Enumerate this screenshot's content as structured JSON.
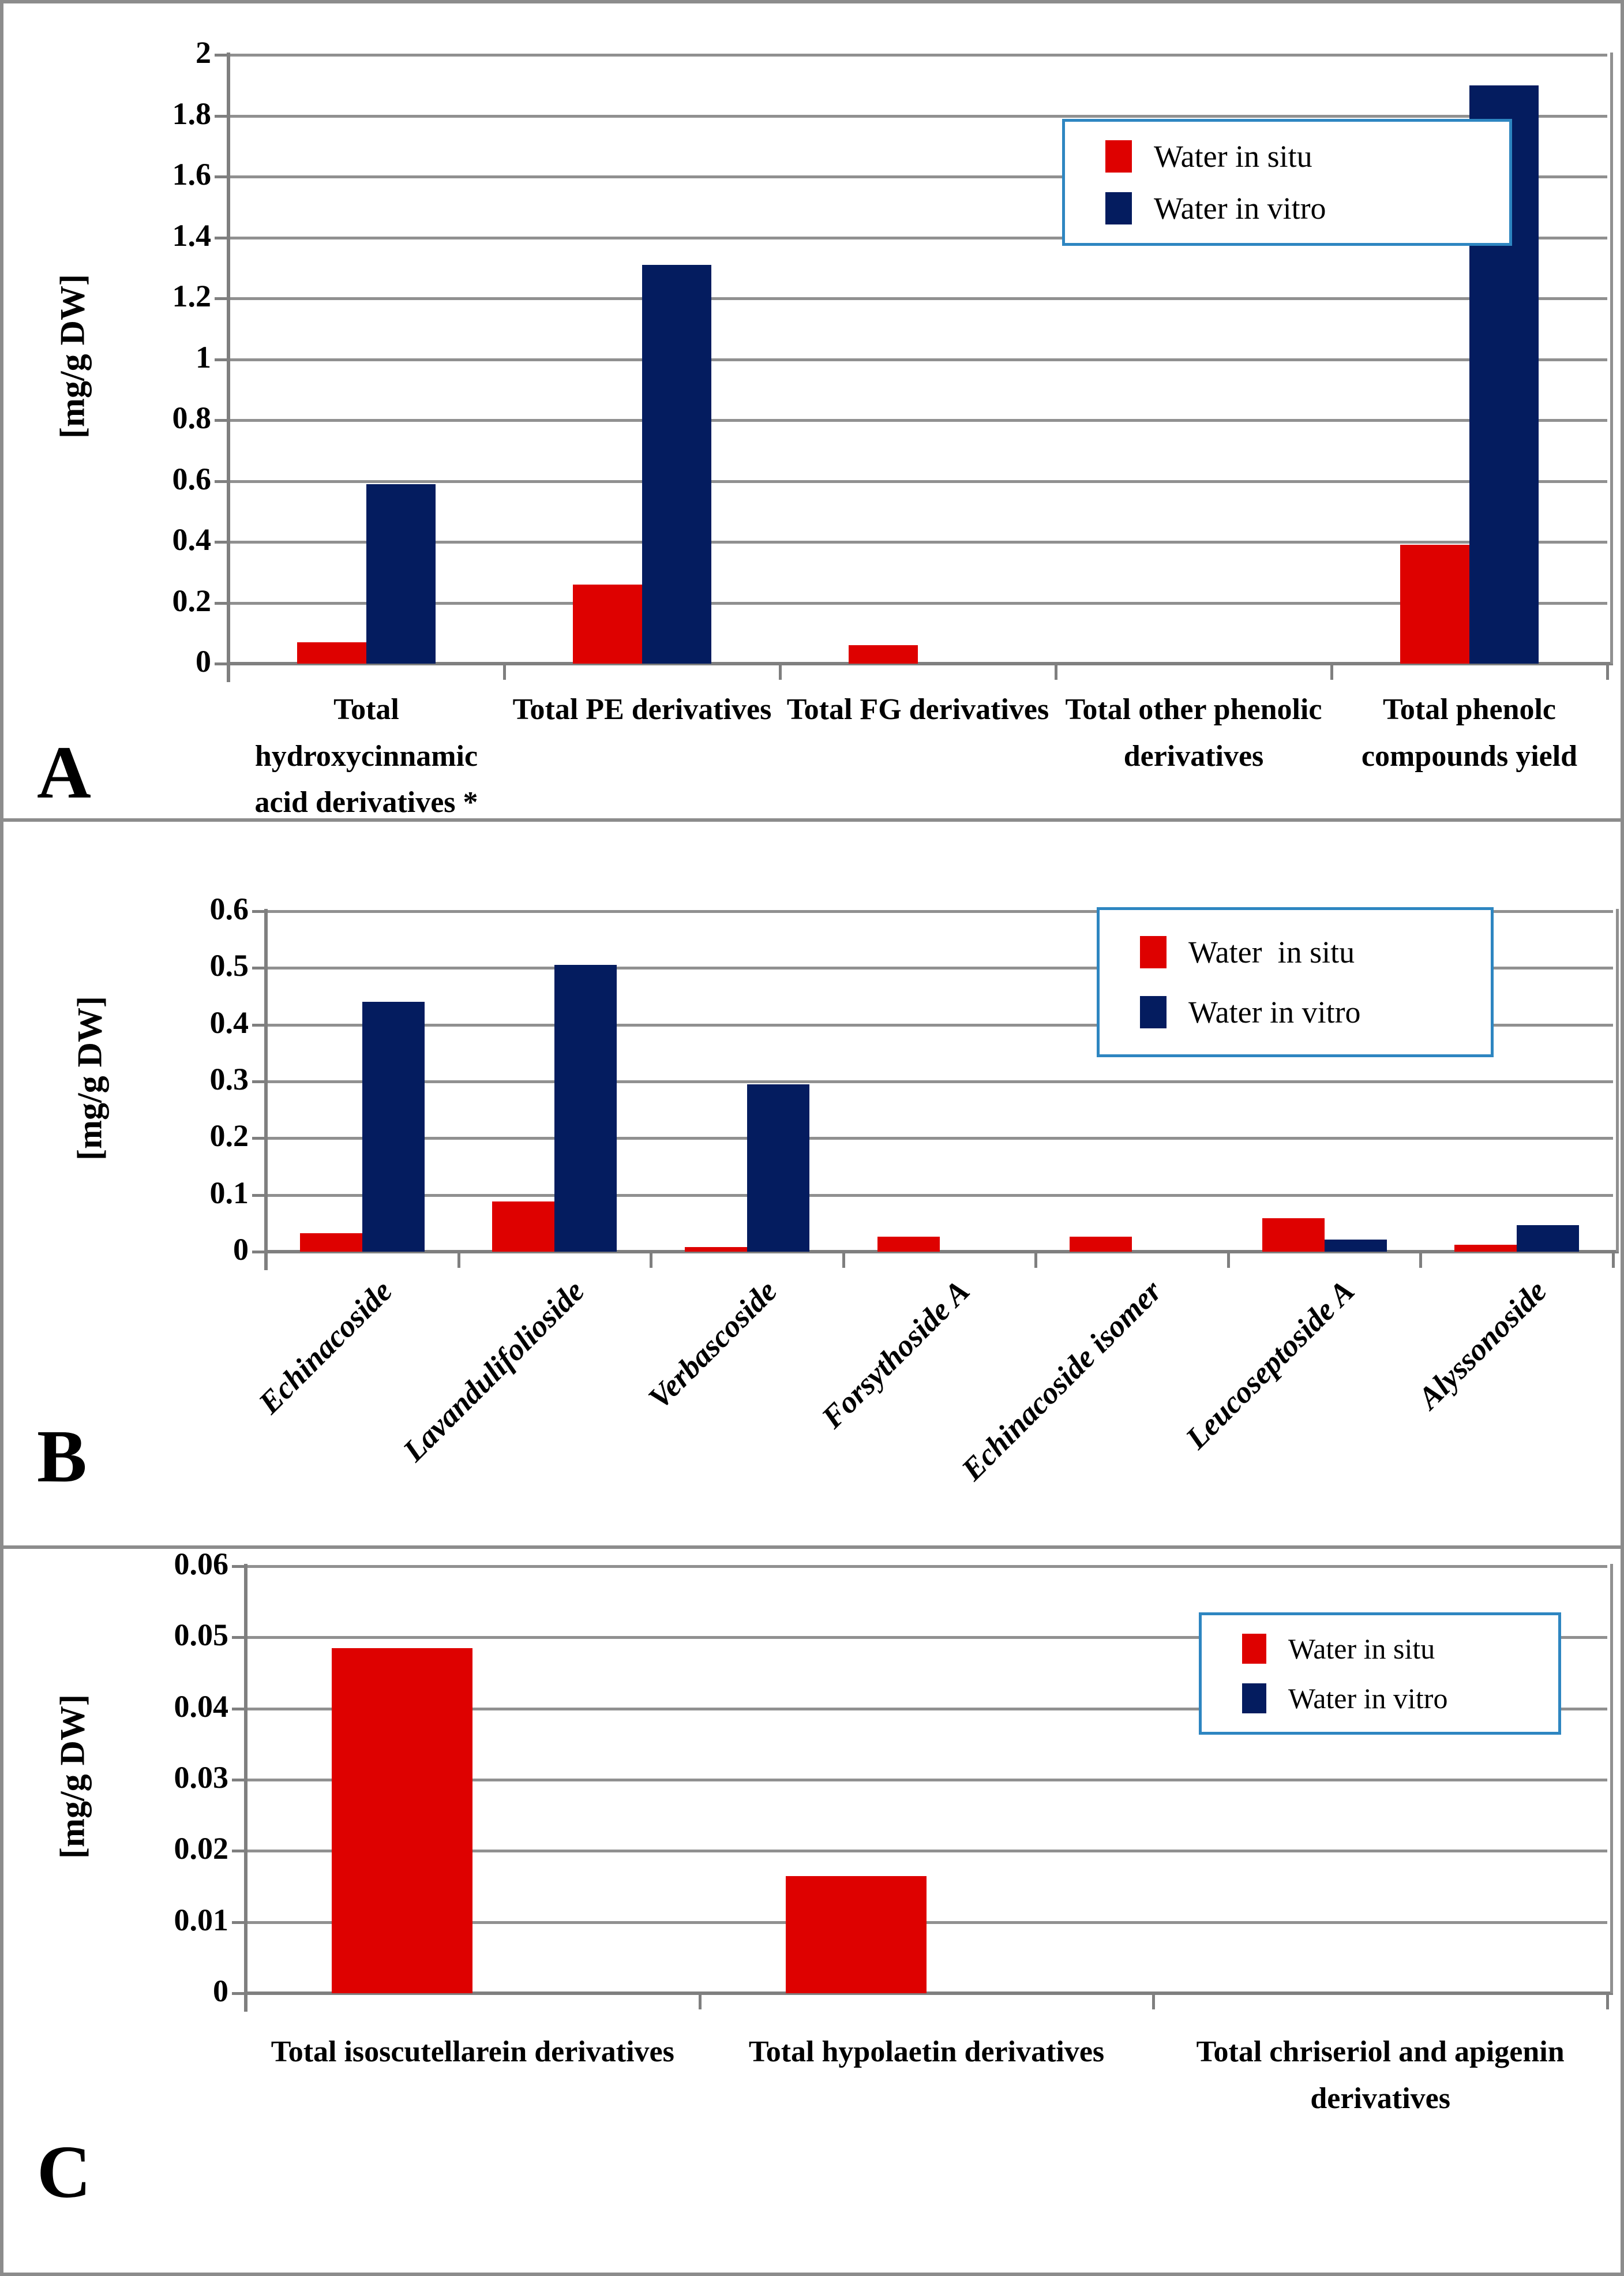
{
  "figure_title": "",
  "colors": {
    "in_situ": "#de0100",
    "in_vitro": "#041c5f",
    "legend_border": "#2e86c1",
    "gridline": "#909090",
    "axis": "#7f7f7f"
  },
  "series_names": [
    "Water in situ",
    "Water in vitro"
  ],
  "chart_data": [
    {
      "id": "A",
      "type": "bar",
      "title": "",
      "xlabel": "",
      "ylabel": "[mg/g DW]",
      "ylim": [
        0,
        2
      ],
      "ytick_labels": [
        "2",
        "1.8",
        "1.6",
        "1.4",
        "1.2",
        "1",
        "0.8",
        "0.6",
        "0.4",
        "0.2",
        "0"
      ],
      "grid": true,
      "legend_position": "top-right",
      "legend_labels": [
        "Water in situ",
        "Water in vitro"
      ],
      "categories": [
        "Total hydroxycinnamic acid derivatives *",
        "Total PE derivatives",
        "Total FG derivatives",
        "Total other phenolic derivatives",
        "Total phenolc compounds yield"
      ],
      "series": [
        {
          "name": "Water in situ",
          "values": [
            0.07,
            0.26,
            0.06,
            0,
            0.39
          ]
        },
        {
          "name": "Water in vitro",
          "values": [
            0.59,
            1.31,
            0,
            0,
            1.9
          ]
        }
      ]
    },
    {
      "id": "B",
      "type": "bar",
      "title": "",
      "xlabel": "",
      "ylabel": "[mg/g DW]",
      "ylim": [
        0,
        0.6
      ],
      "ytick_labels": [
        "0.6",
        "0.5",
        "0.4",
        "0.3",
        "0.2",
        "0.1",
        "0"
      ],
      "grid": true,
      "legend_position": "top-right",
      "legend_labels": [
        "Water  in situ",
        "Water in vitro"
      ],
      "categories": [
        "Echinacoside",
        "Lavandulifolioside",
        "Verbascoside",
        "Forsythoside A",
        "Echinacoside isomer",
        "Leucoseptoside A",
        "Alyssonoside"
      ],
      "series": [
        {
          "name": "Water in situ",
          "values": [
            0.033,
            0.088,
            0.008,
            0.026,
            0.026,
            0.059,
            0.012
          ]
        },
        {
          "name": "Water in vitro",
          "values": [
            0.44,
            0.505,
            0.295,
            0,
            0,
            0.021,
            0.047
          ]
        }
      ]
    },
    {
      "id": "C",
      "type": "bar",
      "title": "",
      "xlabel": "",
      "ylabel": "[mg/g DW]",
      "ylim": [
        0,
        0.06
      ],
      "ytick_labels": [
        "0.06",
        "0.05",
        "0.04",
        "0.03",
        "0.02",
        "0.01",
        "0"
      ],
      "grid": true,
      "legend_position": "top-right",
      "legend_labels": [
        "Water in situ",
        "Water in vitro"
      ],
      "categories": [
        "Total isoscutellarein derivatives",
        "Total hypolaetin derivatives",
        "Total chriseriol and apigenin derivatives"
      ],
      "series": [
        {
          "name": "Water in situ",
          "values": [
            0.0485,
            0.0165,
            0
          ]
        },
        {
          "name": "Water in vitro",
          "values": [
            0,
            0,
            0
          ]
        }
      ]
    }
  ],
  "panel_letters": [
    "A",
    "B",
    "C"
  ]
}
